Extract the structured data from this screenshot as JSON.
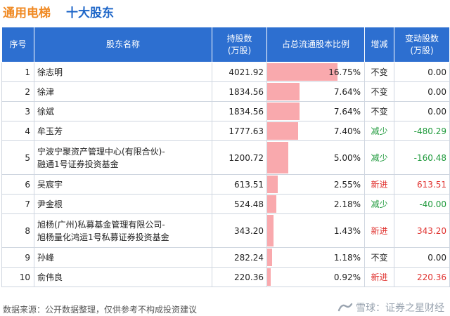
{
  "title": {
    "main": "通用电梯",
    "sub": "十大股东"
  },
  "headers": {
    "index": "序号",
    "name": "股东名称",
    "hold_line1": "持股数",
    "hold_line2": "(万股)",
    "pct": "占总流通股本比例",
    "change": "增减",
    "amt_line1": "变动股数",
    "amt_line2": "(万股)"
  },
  "rows": [
    {
      "idx": "1",
      "name1": "徐志明",
      "name2": "",
      "hold": "4021.92",
      "pct": "16.75%",
      "pct_value": 16.75,
      "change": "不变",
      "change_type": "same",
      "amount": "0.00",
      "amount_type": "zero"
    },
    {
      "idx": "2",
      "name1": "徐津",
      "name2": "",
      "hold": "1834.56",
      "pct": "7.64%",
      "pct_value": 7.64,
      "change": "不变",
      "change_type": "same",
      "amount": "0.00",
      "amount_type": "zero"
    },
    {
      "idx": "3",
      "name1": "徐斌",
      "name2": "",
      "hold": "1834.56",
      "pct": "7.64%",
      "pct_value": 7.64,
      "change": "不变",
      "change_type": "same",
      "amount": "0.00",
      "amount_type": "zero"
    },
    {
      "idx": "4",
      "name1": "牟玉芳",
      "name2": "",
      "hold": "1777.63",
      "pct": "7.40%",
      "pct_value": 7.4,
      "change": "减少",
      "change_type": "down",
      "amount": "-480.29",
      "amount_type": "neg"
    },
    {
      "idx": "5",
      "name1": "宁波宁聚资产管理中心(有限合伙)-",
      "name2": "融通1号证券投资基金",
      "hold": "1200.72",
      "pct": "5.00%",
      "pct_value": 5.0,
      "change": "减少",
      "change_type": "down",
      "amount": "-160.48",
      "amount_type": "neg"
    },
    {
      "idx": "6",
      "name1": "吴宸宇",
      "name2": "",
      "hold": "613.51",
      "pct": "2.55%",
      "pct_value": 2.55,
      "change": "新进",
      "change_type": "new",
      "amount": "613.51",
      "amount_type": "pos"
    },
    {
      "idx": "7",
      "name1": "尹金根",
      "name2": "",
      "hold": "524.48",
      "pct": "2.18%",
      "pct_value": 2.18,
      "change": "减少",
      "change_type": "down",
      "amount": "-40.00",
      "amount_type": "neg"
    },
    {
      "idx": "8",
      "name1": "旭杨(广州)私募基金管理有限公司-",
      "name2": "旭杨量化鸿运1号私募证券投资基金",
      "hold": "343.20",
      "pct": "1.43%",
      "pct_value": 1.43,
      "change": "新进",
      "change_type": "new",
      "amount": "343.20",
      "amount_type": "pos"
    },
    {
      "idx": "9",
      "name1": "孙峰",
      "name2": "",
      "hold": "282.24",
      "pct": "1.18%",
      "pct_value": 1.18,
      "change": "不变",
      "change_type": "same",
      "amount": "0.00",
      "amount_type": "zero"
    },
    {
      "idx": "10",
      "name1": "俞伟良",
      "name2": "",
      "hold": "220.36",
      "pct": "0.92%",
      "pct_value": 0.92,
      "change": "新进",
      "change_type": "new",
      "amount": "220.36",
      "amount_type": "pos"
    }
  ],
  "pct_max": 16.75,
  "footer": {
    "source": "数据来源：公开数据整理，仅供参考不构成投资建议",
    "brand": "雪球：证券之星财经"
  },
  "watermark": "证券之星",
  "colors": {
    "accent_title": "#f08a24",
    "sub_title": "#1e66c8",
    "header_bg": "#2d6fd0",
    "bar": "#f9a9ad",
    "up": "#e0322f",
    "down": "#1f9a3c"
  }
}
